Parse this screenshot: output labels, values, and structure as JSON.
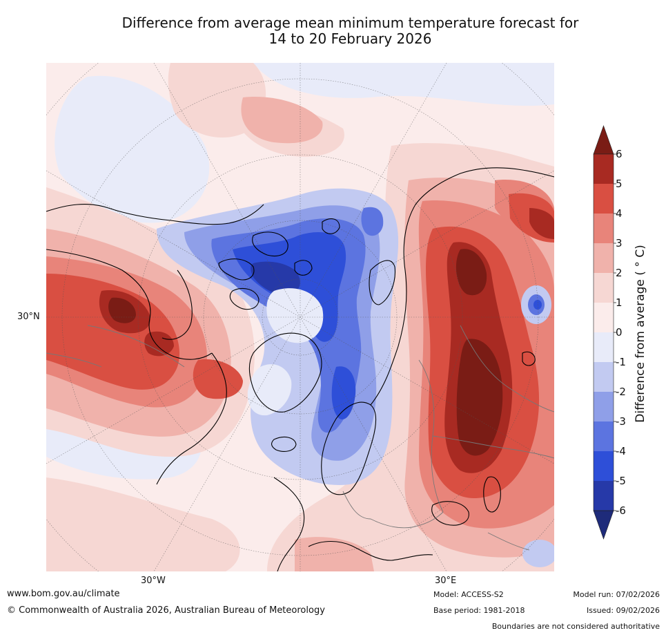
{
  "title": {
    "line1": "Difference from average mean minimum temperature forecast for",
    "line2": "14 to 20 February 2026"
  },
  "map": {
    "projection": "North polar stereographic",
    "latitude_labels": [
      "30°N"
    ],
    "longitude_labels": [
      "30°W",
      "30°E"
    ]
  },
  "colorbar": {
    "label": "Difference from average (°C)",
    "label_display": "Difference from average ( ° C)",
    "ticks": [
      "6",
      "5",
      "4",
      "3",
      "2",
      "1",
      "0",
      "-1",
      "-2",
      "-3",
      "-4",
      "-5",
      "-6"
    ],
    "extend": "both",
    "levels": [
      {
        "range": "> 6",
        "color": "#7a1c15"
      },
      {
        "range": "5 to 6",
        "color": "#a82a22"
      },
      {
        "range": "4 to 5",
        "color": "#d94f42"
      },
      {
        "range": "3 to 4",
        "color": "#e8847a"
      },
      {
        "range": "2 to 3",
        "color": "#f0b2ab"
      },
      {
        "range": "1 to 2",
        "color": "#f6d7d3"
      },
      {
        "range": "0 to 1",
        "color": "#fbeceb"
      },
      {
        "range": "-1 to 0",
        "color": "#e8ebf9"
      },
      {
        "range": "-2 to -1",
        "color": "#c2caf1"
      },
      {
        "range": "-3 to -2",
        "color": "#8f9fe8"
      },
      {
        "range": "-4 to -3",
        "color": "#5c74e0"
      },
      {
        "range": "-5 to -4",
        "color": "#2e4fd8"
      },
      {
        "range": "-6 to -5",
        "color": "#2639a8"
      },
      {
        "range": "< -6",
        "color": "#1e2b7a"
      }
    ]
  },
  "footer": {
    "url": "www.bom.gov.au/climate",
    "copyright": "© Commonwealth of Australia 2026, Australian Bureau of Meteorology",
    "model": "Model: ACCESS-S2",
    "base_period": "Base period: 1981-2018",
    "model_run": "Model run: 07/02/2026",
    "issued": "Issued: 09/02/2026",
    "disclaimer": "Boundaries are not considered authoritative"
  }
}
